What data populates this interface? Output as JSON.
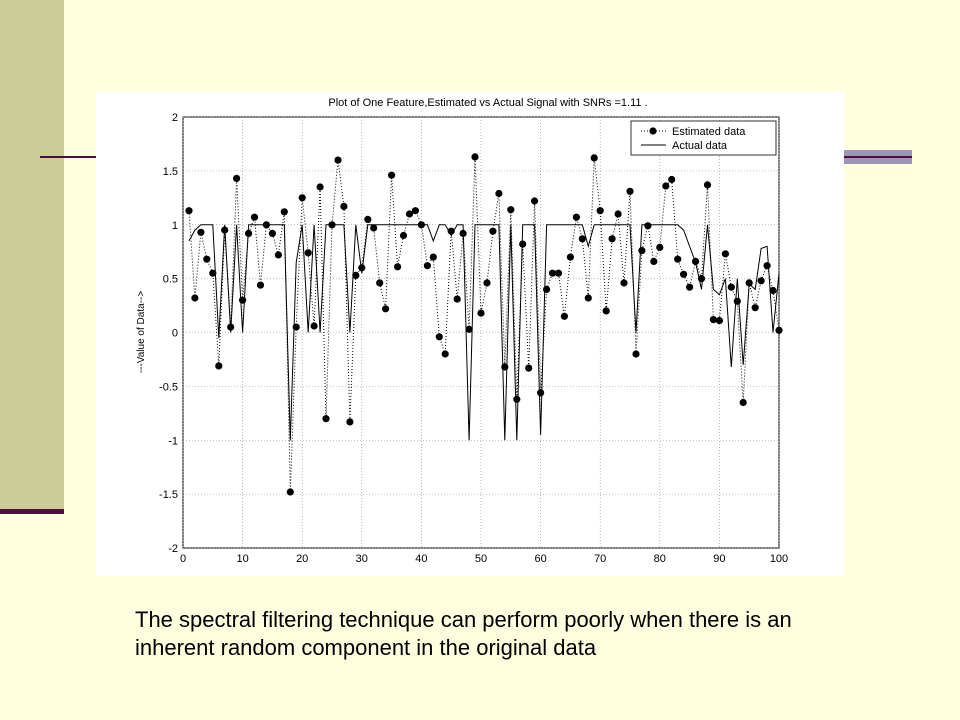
{
  "slide": {
    "caption": "The spectral filtering technique can perform poorly when there is an inherent random component in the original data",
    "colors": {
      "background": "#ffffe0",
      "sidebar": "#cccc99",
      "accent": "#4d0e3f"
    }
  },
  "chart_data": {
    "type": "line",
    "title": "Plot of One Feature,Estimated vs Actual Signal with SNRs =1.11 .",
    "xlabel": "",
    "ylabel": "---Value of Data-->",
    "xlim": [
      0,
      100
    ],
    "ylim": [
      -2,
      2
    ],
    "xticks": [
      0,
      10,
      20,
      30,
      40,
      50,
      60,
      70,
      80,
      90,
      100
    ],
    "yticks": [
      -2,
      -1.5,
      -1,
      -0.5,
      0,
      0.5,
      1,
      1.5,
      2
    ],
    "grid": true,
    "legend_position": "top-right",
    "series": [
      {
        "name": "Estimated data",
        "style": "dotted-with-markers",
        "x": [
          1,
          2,
          3,
          4,
          5,
          6,
          7,
          8,
          9,
          10,
          11,
          12,
          13,
          14,
          15,
          16,
          17,
          18,
          19,
          20,
          21,
          22,
          23,
          24,
          25,
          26,
          27,
          28,
          29,
          30,
          31,
          32,
          33,
          34,
          35,
          36,
          37,
          38,
          39,
          40,
          41,
          42,
          43,
          44,
          45,
          46,
          47,
          48,
          49,
          50,
          51,
          52,
          53,
          54,
          55,
          56,
          57,
          58,
          59,
          60,
          61,
          62,
          63,
          64,
          65,
          66,
          67,
          68,
          69,
          70,
          71,
          72,
          73,
          74,
          75,
          76,
          77,
          78,
          79,
          80,
          81,
          82,
          83,
          84,
          85,
          86,
          87,
          88,
          89,
          90,
          91,
          92,
          93,
          94,
          95,
          96,
          97,
          98,
          99,
          100
        ],
        "values": [
          1.13,
          0.32,
          0.93,
          0.68,
          0.55,
          -0.31,
          0.95,
          0.05,
          1.43,
          0.3,
          0.92,
          1.07,
          0.44,
          1.0,
          0.92,
          0.72,
          1.12,
          -1.48,
          0.05,
          1.25,
          0.74,
          0.06,
          1.35,
          -0.8,
          1.0,
          1.6,
          1.17,
          -0.83,
          0.53,
          0.6,
          1.05,
          0.97,
          0.46,
          0.22,
          1.46,
          0.61,
          0.9,
          1.1,
          1.13,
          1.0,
          0.62,
          0.7,
          -0.04,
          -0.2,
          0.94,
          0.31,
          0.92,
          0.03,
          1.63,
          0.18,
          0.46,
          0.94,
          1.29,
          -0.32,
          1.14,
          -0.62,
          0.82,
          -0.33,
          1.22,
          -0.56,
          0.4,
          0.55,
          0.55,
          0.15,
          0.7,
          1.07,
          0.87,
          0.32,
          1.62,
          1.13,
          0.2,
          0.87,
          1.1,
          0.46,
          1.31,
          -0.2,
          0.76,
          0.99,
          0.66,
          0.79,
          1.36,
          1.42,
          0.68,
          0.54,
          0.42,
          0.66,
          0.5,
          1.37,
          0.12,
          0.11,
          0.73,
          0.42,
          0.29,
          -0.65,
          0.46,
          0.23,
          0.48,
          0.62,
          0.39,
          0.02
        ]
      },
      {
        "name": "Actual data",
        "style": "solid",
        "x": [
          1,
          2,
          3,
          4,
          5,
          6,
          7,
          8,
          9,
          10,
          11,
          12,
          13,
          14,
          15,
          16,
          17,
          18,
          19,
          20,
          21,
          22,
          23,
          24,
          25,
          26,
          27,
          28,
          29,
          30,
          31,
          32,
          33,
          34,
          35,
          36,
          37,
          38,
          39,
          40,
          41,
          42,
          43,
          44,
          45,
          46,
          47,
          48,
          49,
          50,
          51,
          52,
          53,
          54,
          55,
          56,
          57,
          58,
          59,
          60,
          61,
          62,
          63,
          64,
          65,
          66,
          67,
          68,
          69,
          70,
          71,
          72,
          73,
          74,
          75,
          76,
          77,
          78,
          79,
          80,
          81,
          82,
          83,
          84,
          85,
          86,
          87,
          88,
          89,
          90,
          91,
          92,
          93,
          94,
          95,
          96,
          97,
          98,
          99,
          100
        ],
        "values": [
          0.85,
          0.95,
          1.0,
          1.0,
          1.0,
          -0.05,
          1.0,
          0.0,
          1.0,
          0.0,
          1.0,
          1.0,
          1.0,
          1.0,
          1.0,
          1.0,
          1.0,
          -1.0,
          0.65,
          1.0,
          0.0,
          1.0,
          0.0,
          1.0,
          1.0,
          1.0,
          1.0,
          0.0,
          1.0,
          0.55,
          1.0,
          1.0,
          1.0,
          1.0,
          1.0,
          1.0,
          1.0,
          1.0,
          1.0,
          1.0,
          1.0,
          0.85,
          1.0,
          1.0,
          0.9,
          1.0,
          1.0,
          -1.0,
          1.0,
          1.0,
          1.0,
          1.0,
          1.0,
          -1.0,
          1.0,
          -1.0,
          1.0,
          1.0,
          1.0,
          -0.95,
          1.0,
          1.0,
          1.0,
          1.0,
          1.0,
          1.0,
          1.0,
          0.8,
          1.0,
          1.0,
          1.0,
          1.0,
          1.0,
          1.0,
          1.0,
          0.0,
          1.0,
          1.0,
          1.0,
          1.0,
          1.0,
          1.0,
          1.0,
          0.95,
          0.8,
          0.65,
          0.4,
          1.0,
          0.4,
          0.35,
          0.5,
          -0.32,
          0.5,
          -0.3,
          0.45,
          0.4,
          0.78,
          0.8,
          0.0,
          0.55
        ]
      }
    ]
  }
}
